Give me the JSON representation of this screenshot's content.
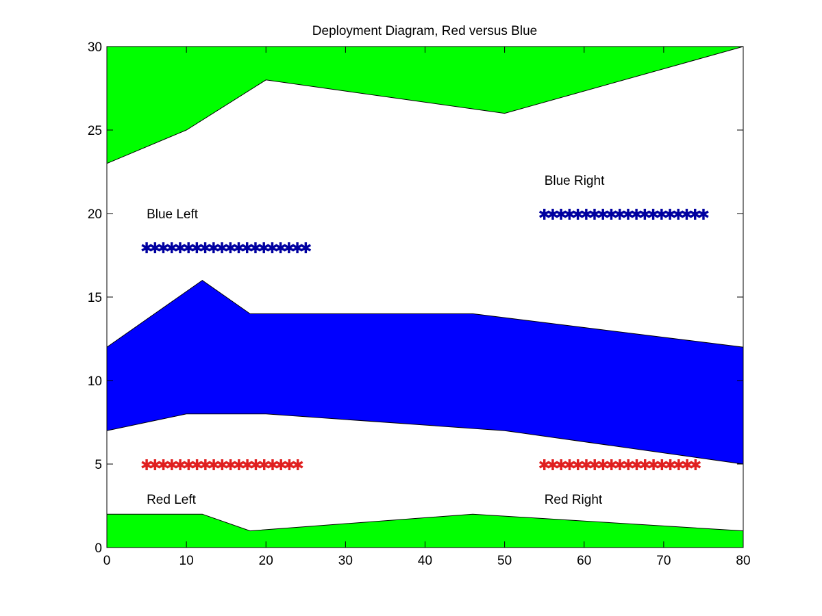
{
  "chart_data": {
    "type": "area",
    "title": "Deployment Diagram, Red versus Blue",
    "xlabel": "",
    "ylabel": "",
    "xlim": [
      0,
      80
    ],
    "ylim": [
      0,
      30
    ],
    "xticks": [
      0,
      10,
      20,
      30,
      40,
      50,
      60,
      70,
      80
    ],
    "yticks": [
      0,
      5,
      10,
      15,
      20,
      25,
      30
    ],
    "grid": false,
    "regions": [
      {
        "color": "#00ff00",
        "lower": {
          "x": [
            0,
            10,
            20,
            50,
            80
          ],
          "y": [
            23,
            25,
            28,
            26,
            30
          ]
        },
        "upper": {
          "x": [
            0,
            80
          ],
          "y": [
            30,
            30
          ]
        }
      },
      {
        "color": "#0000ff",
        "lower": {
          "x": [
            0,
            10,
            20,
            50,
            80
          ],
          "y": [
            7,
            8,
            8,
            7,
            5
          ]
        },
        "upper": {
          "x": [
            0,
            12,
            18,
            46,
            80
          ],
          "y": [
            12,
            16,
            14,
            14,
            12
          ]
        }
      },
      {
        "color": "#00ff00",
        "lower": {
          "x": [
            0,
            80
          ],
          "y": [
            0,
            0
          ]
        },
        "upper": {
          "x": [
            0,
            12,
            18,
            46,
            80
          ],
          "y": [
            2,
            2,
            1,
            2,
            1
          ]
        }
      }
    ],
    "marker_rows": [
      {
        "color": "#0000a0",
        "x_start": 5,
        "x_end": 25,
        "y": 18,
        "count": 20
      },
      {
        "color": "#0000a0",
        "x_start": 55,
        "x_end": 75,
        "y": 20,
        "count": 20
      },
      {
        "color": "#e02020",
        "x_start": 5,
        "x_end": 24,
        "y": 5,
        "count": 19
      },
      {
        "color": "#e02020",
        "x_start": 55,
        "x_end": 74,
        "y": 5,
        "count": 19
      }
    ],
    "annotations": [
      {
        "text": "Blue Left",
        "x": 5,
        "y": 20
      },
      {
        "text": "Blue Right",
        "x": 55,
        "y": 22
      },
      {
        "text": "Red Left",
        "x": 5,
        "y": 2.9
      },
      {
        "text": "Red Right",
        "x": 55,
        "y": 2.9
      }
    ]
  }
}
